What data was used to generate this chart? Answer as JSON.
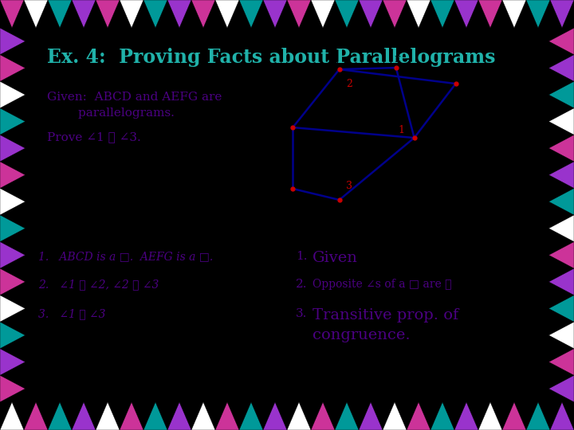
{
  "title": "Ex. 4:  Proving Facts about Parallelograms",
  "title_color": "#20B2AA",
  "background_color": "#FFFFFF",
  "given_line1": "Given:  ABCD and AEFG are",
  "given_line2": "        parallelograms.",
  "prove_text": "Prove ∠1 ≅ ∠3.",
  "stmt1": "1.   ABCD is a □.  AEFG is a □.",
  "stmt2": "2.   ∠1 ≅ ∠2, ∠2 ≅ ∠3",
  "stmt3": "3.   ∠1 ≅ ∠3",
  "reason1": "Given",
  "reason2": "Opposite ∠s of a □ are ≅",
  "reason3a": "Transitive prop. of",
  "reason3b": "congruence.",
  "text_purple": "#4B0082",
  "text_red": "#CC0000",
  "line_color": "#00008B",
  "dot_color": "#CC0000",
  "border_colors_top": [
    "#CC3399",
    "#FFFFFF",
    "#009999",
    "#9933CC",
    "#CC3399",
    "#FFFFFF",
    "#009999",
    "#9933CC",
    "#CC3399",
    "#FFFFFF",
    "#009999",
    "#9933CC",
    "#CC3399",
    "#FFFFFF",
    "#009999",
    "#9933CC",
    "#CC3399",
    "#FFFFFF",
    "#009999",
    "#9933CC",
    "#CC3399",
    "#FFFFFF",
    "#009999",
    "#9933CC"
  ],
  "border_colors_bottom": [
    "#FFFFFF",
    "#CC3399",
    "#009999",
    "#9933CC",
    "#FFFFFF",
    "#CC3399",
    "#009999",
    "#9933CC",
    "#FFFFFF",
    "#CC3399",
    "#009999",
    "#9933CC",
    "#FFFFFF",
    "#CC3399",
    "#009999",
    "#9933CC",
    "#FFFFFF",
    "#CC3399",
    "#009999",
    "#9933CC",
    "#FFFFFF",
    "#CC3399",
    "#009999",
    "#9933CC"
  ],
  "border_colors_left": [
    "#CC3399",
    "#9933CC",
    "#009999",
    "#FFFFFF",
    "#CC3399",
    "#9933CC",
    "#009999",
    "#FFFFFF",
    "#CC3399",
    "#9933CC",
    "#009999",
    "#FFFFFF",
    "#CC3399",
    "#9933CC"
  ],
  "border_colors_right": [
    "#9933CC",
    "#CC3399",
    "#FFFFFF",
    "#009999",
    "#9933CC",
    "#CC3399",
    "#FFFFFF",
    "#009999",
    "#9933CC",
    "#CC3399",
    "#FFFFFF",
    "#009999",
    "#9933CC",
    "#CC3399"
  ]
}
